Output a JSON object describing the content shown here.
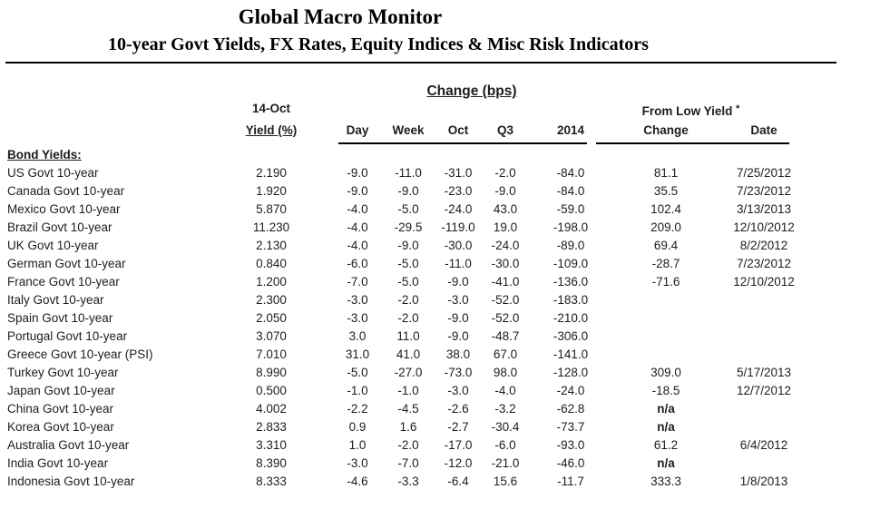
{
  "header": {
    "title": "Global Macro Monitor",
    "subtitle": "10-year Govt Yields, FX Rates, Equity Indices & Misc Risk Indicators"
  },
  "table": {
    "group_headers": {
      "change_bps": "Change (bps)",
      "as_of_date": "14-Oct",
      "from_low": "From Low Yield",
      "from_low_mark": "*"
    },
    "columns": {
      "yield": "Yield (%)",
      "day": "Day",
      "week": "Week",
      "oct": "Oct",
      "q3": "Q3",
      "y2014": "2014",
      "change": "Change",
      "date": "Date"
    },
    "section_label": "Bond Yields:",
    "rows": [
      {
        "label": "US Govt 10-year",
        "yield": "2.190",
        "day": "-9.0",
        "week": "-11.0",
        "oct": "-31.0",
        "q3": "-2.0",
        "y2014": "-84.0",
        "low_change": "81.1",
        "low_date": "7/25/2012"
      },
      {
        "label": "Canada Govt 10-year",
        "yield": "1.920",
        "day": "-9.0",
        "week": "-9.0",
        "oct": "-23.0",
        "q3": "-9.0",
        "y2014": "-84.0",
        "low_change": "35.5",
        "low_date": "7/23/2012"
      },
      {
        "label": "Mexico Govt 10-year",
        "yield": "5.870",
        "day": "-4.0",
        "week": "-5.0",
        "oct": "-24.0",
        "q3": "43.0",
        "y2014": "-59.0",
        "low_change": "102.4",
        "low_date": "3/13/2013"
      },
      {
        "label": "Brazil Govt 10-year",
        "yield": "11.230",
        "day": "-4.0",
        "week": "-29.5",
        "oct": "-119.0",
        "q3": "19.0",
        "y2014": "-198.0",
        "low_change": "209.0",
        "low_date": "12/10/2012"
      },
      {
        "label": "UK Govt 10-year",
        "yield": "2.130",
        "day": "-4.0",
        "week": "-9.0",
        "oct": "-30.0",
        "q3": "-24.0",
        "y2014": "-89.0",
        "low_change": "69.4",
        "low_date": "8/2/2012"
      },
      {
        "label": "German Govt 10-year",
        "yield": "0.840",
        "day": "-6.0",
        "week": "-5.0",
        "oct": "-11.0",
        "q3": "-30.0",
        "y2014": "-109.0",
        "low_change": "-28.7",
        "low_date": "7/23/2012"
      },
      {
        "label": "France Govt 10-year",
        "yield": "1.200",
        "day": "-7.0",
        "week": "-5.0",
        "oct": "-9.0",
        "q3": "-41.0",
        "y2014": "-136.0",
        "low_change": "-71.6",
        "low_date": "12/10/2012"
      },
      {
        "label": "Italy Govt 10-year",
        "yield": "2.300",
        "day": "-3.0",
        "week": "-2.0",
        "oct": "-3.0",
        "q3": "-52.0",
        "y2014": "-183.0",
        "low_change": "",
        "low_date": ""
      },
      {
        "label": "Spain Govt 10-year",
        "yield": "2.050",
        "day": "-3.0",
        "week": "-2.0",
        "oct": "-9.0",
        "q3": "-52.0",
        "y2014": "-210.0",
        "low_change": "",
        "low_date": ""
      },
      {
        "label": "Portugal Govt 10-year",
        "yield": "3.070",
        "day": "3.0",
        "week": "11.0",
        "oct": "-9.0",
        "q3": "-48.7",
        "y2014": "-306.0",
        "low_change": "",
        "low_date": ""
      },
      {
        "label": "Greece Govt 10-year (PSI)",
        "yield": "7.010",
        "day": "31.0",
        "week": "41.0",
        "oct": "38.0",
        "q3": "67.0",
        "y2014": "-141.0",
        "low_change": "",
        "low_date": ""
      },
      {
        "label": "Turkey Govt 10-year",
        "yield": "8.990",
        "day": "-5.0",
        "week": "-27.0",
        "oct": "-73.0",
        "q3": "98.0",
        "y2014": "-128.0",
        "low_change": "309.0",
        "low_date": "5/17/2013"
      },
      {
        "label": "Japan Govt 10-year",
        "yield": "0.500",
        "day": "-1.0",
        "week": "-1.0",
        "oct": "-3.0",
        "q3": "-4.0",
        "y2014": "-24.0",
        "low_change": "-18.5",
        "low_date": "12/7/2012"
      },
      {
        "label": "China Govt 10-year",
        "yield": "4.002",
        "day": "-2.2",
        "week": "-4.5",
        "oct": "-2.6",
        "q3": "-3.2",
        "y2014": "-62.8",
        "low_change": "n/a",
        "low_date": ""
      },
      {
        "label": "Korea Govt 10-year",
        "yield": "2.833",
        "day": "0.9",
        "week": "1.6",
        "oct": "-2.7",
        "q3": "-30.4",
        "y2014": "-73.7",
        "low_change": "n/a",
        "low_date": ""
      },
      {
        "label": "Australia Govt 10-year",
        "yield": "3.310",
        "day": "1.0",
        "week": "-2.0",
        "oct": "-17.0",
        "q3": "-6.0",
        "y2014": "-93.0",
        "low_change": "61.2",
        "low_date": "6/4/2012"
      },
      {
        "label": "India Govt 10-year",
        "yield": "8.390",
        "day": "-3.0",
        "week": "-7.0",
        "oct": "-12.0",
        "q3": "-21.0",
        "y2014": "-46.0",
        "low_change": "n/a",
        "low_date": ""
      },
      {
        "label": "Indonesia Govt 10-year",
        "yield": "8.333",
        "day": "-4.6",
        "week": "-3.3",
        "oct": "-6.4",
        "q3": "15.6",
        "y2014": "-11.7",
        "low_change": "333.3",
        "low_date": "1/8/2013"
      }
    ]
  }
}
